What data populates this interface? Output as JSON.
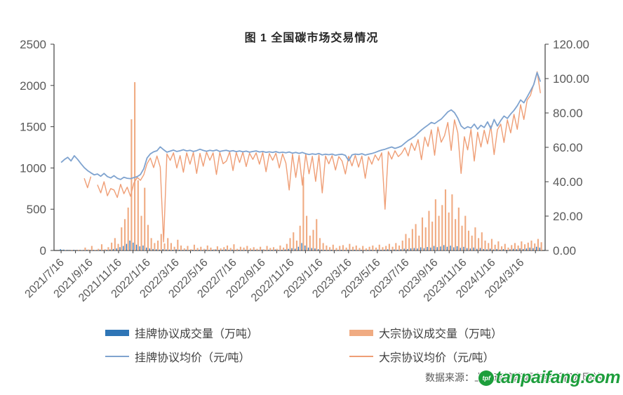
{
  "title": "图 1 全国碳市场交易情况",
  "source_text": "数据来源：上海环境能源交易所官方网站",
  "watermark": {
    "text": "tanpaifang.com",
    "logo_text": "tpf",
    "color": "#1d9e3c"
  },
  "colors": {
    "listed_volume_bar": "#2e75b6",
    "block_volume_bar": "#f0ab82",
    "listed_price_line": "#7fa3cf",
    "block_price_line": "#ef9e76",
    "axis_line": "#404040",
    "axis_text": "#595959"
  },
  "legend": [
    {
      "label": "挂牌协议成交量（万吨）",
      "type": "bar",
      "color": "#2e75b6"
    },
    {
      "label": "大宗协议成交量（万吨）",
      "type": "bar",
      "color": "#f0ab82"
    },
    {
      "label": "挂牌协议均价（元/吨）",
      "type": "line",
      "color": "#7fa3cf"
    },
    {
      "label": "大宗协议均价（元/吨）",
      "type": "line",
      "color": "#ef9e76"
    }
  ],
  "chart_data": {
    "type": "bar",
    "subtype": "dual-axis bar+line combo, weekly samples",
    "title": "图 1 全国碳市场交易情况",
    "x_start_date": "2021/7/16",
    "x_step_days": 7,
    "x_tick_labels": [
      "2021/7/16",
      "2021/9/16",
      "2021/11/16",
      "2022/1/16",
      "2022/3/16",
      "2022/5/16",
      "2022/7/16",
      "2022/9/16",
      "2022/11/16",
      "2023/1/16",
      "2023/3/16",
      "2023/5/16",
      "2023/7/16",
      "2023/9/16",
      "2023/11/16",
      "2024/1/16",
      "2024/3/16"
    ],
    "y_left": {
      "min": 0,
      "max": 2500,
      "values": [
        0,
        500,
        1000,
        1500,
        2000,
        2500
      ],
      "labels": [
        "0",
        "500",
        "1000",
        "1500",
        "2000",
        "2500"
      ],
      "unit": "万吨"
    },
    "y_right": {
      "min": 0,
      "max": 120,
      "values": [
        0,
        20,
        40,
        60,
        80,
        100,
        120
      ],
      "labels": [
        "0.00",
        "20.00",
        "40.00",
        "60.00",
        "80.00",
        "100.00",
        "120.00"
      ],
      "unit": "元/吨"
    },
    "grid": false,
    "legend_position": "bottom",
    "series": [
      {
        "name": "挂牌协议成交量（万吨）",
        "type": "bar",
        "axis": "left",
        "color": "#2e75b6",
        "values": [
          16,
          10,
          6,
          4,
          8,
          3,
          5,
          4,
          7,
          3,
          6,
          5,
          9,
          4,
          8,
          12,
          18,
          25,
          40,
          55,
          80,
          120,
          95,
          70,
          50,
          60,
          35,
          25,
          18,
          14,
          10,
          16,
          12,
          10,
          8,
          14,
          9,
          6,
          10,
          5,
          8,
          7,
          9,
          5,
          11,
          6,
          8,
          12,
          6,
          9,
          14,
          7,
          10,
          5,
          8,
          6,
          9,
          5,
          7,
          8,
          5,
          10,
          6,
          9,
          7,
          11,
          5,
          8,
          12,
          20,
          28,
          22,
          45,
          90,
          60,
          35,
          30,
          25,
          15,
          10,
          8,
          6,
          9,
          5,
          7,
          8,
          6,
          10,
          7,
          9,
          5,
          8,
          4,
          7,
          9,
          6,
          11,
          8,
          10,
          14,
          8,
          12,
          9,
          15,
          22,
          18,
          26,
          30,
          24,
          38,
          28,
          42,
          35,
          55,
          40,
          48,
          65,
          45,
          58,
          38,
          52,
          32,
          44,
          28,
          24,
          36,
          20,
          30,
          18,
          14,
          22,
          12,
          18,
          10,
          16,
          8,
          14,
          20,
          15,
          26,
          18,
          24,
          35,
          28,
          45,
          35
        ]
      },
      {
        "name": "大宗协议成交量（万吨）",
        "type": "bar",
        "axis": "left",
        "color": "#f0ab82",
        "values": [
          0,
          3,
          1,
          6,
          2,
          8,
          4,
          35,
          12,
          55,
          8,
          20,
          75,
          15,
          40,
          95,
          150,
          80,
          280,
          380,
          520,
          1590,
          2040,
          850,
          420,
          760,
          310,
          150,
          90,
          120,
          200,
          85,
          150,
          90,
          45,
          130,
          60,
          25,
          55,
          15,
          70,
          30,
          45,
          20,
          60,
          35,
          15,
          50,
          25,
          40,
          60,
          30,
          75,
          20,
          45,
          35,
          55,
          25,
          40,
          20,
          45,
          15,
          55,
          30,
          40,
          20,
          60,
          35,
          80,
          150,
          220,
          120,
          300,
          890,
          420,
          180,
          250,
          380,
          150,
          90,
          60,
          40,
          70,
          30,
          55,
          65,
          35,
          80,
          45,
          60,
          30,
          55,
          25,
          45,
          60,
          35,
          70,
          40,
          55,
          80,
          45,
          90,
          60,
          120,
          200,
          150,
          260,
          320,
          180,
          400,
          280,
          480,
          350,
          620,
          420,
          550,
          740,
          460,
          680,
          380,
          520,
          300,
          420,
          240,
          180,
          280,
          150,
          220,
          120,
          90,
          140,
          70,
          110,
          50,
          80,
          35,
          65,
          90,
          60,
          110,
          75,
          95,
          120,
          85,
          140,
          100
        ]
      },
      {
        "name": "挂牌协议均价（元/吨）",
        "type": "line",
        "axis": "right",
        "color": "#7fa3cf",
        "values": [
          51.2,
          52.9,
          54.2,
          52.1,
          55.1,
          53.0,
          50.5,
          48.2,
          46.5,
          45.2,
          44.0,
          44.5,
          43.2,
          44.8,
          43.0,
          42.2,
          43.5,
          42.0,
          41.3,
          42.6,
          42.0,
          41.8,
          42.4,
          43.0,
          44.2,
          47.5,
          53.8,
          56.2,
          57.4,
          58.0,
          60.3,
          58.6,
          57.2,
          57.8,
          58.4,
          57.6,
          58.0,
          58.6,
          57.9,
          58.3,
          57.6,
          58.1,
          58.9,
          58.2,
          57.7,
          58.3,
          57.9,
          58.5,
          57.6,
          58.0,
          58.3,
          57.7,
          58.1,
          57.5,
          57.9,
          57.4,
          57.8,
          57.2,
          57.6,
          57.9,
          57.3,
          57.6,
          57.1,
          57.4,
          57.0,
          57.5,
          56.9,
          57.2,
          56.8,
          57.3,
          56.6,
          57.0,
          56.5,
          57.0,
          56.3,
          55.8,
          56.2,
          55.9,
          56.4,
          55.6,
          56.0,
          55.7,
          56.1,
          55.4,
          55.8,
          56.0,
          55.3,
          52.2,
          55.6,
          56.1,
          55.8,
          56.3,
          55.5,
          56.0,
          56.4,
          57.0,
          57.8,
          58.4,
          58.9,
          59.6,
          60.2,
          59.4,
          60.0,
          60.8,
          62.5,
          64.0,
          65.2,
          66.5,
          68.3,
          70.1,
          71.6,
          73.0,
          74.5,
          73.8,
          75.2,
          76.4,
          78.5,
          80.6,
          81.8,
          80.2,
          77.0,
          72.5,
          70.8,
          72.0,
          71.2,
          73.5,
          70.6,
          72.8,
          71.5,
          74.8,
          70.9,
          76.2,
          72.4,
          75.6,
          78.2,
          76.8,
          79.4,
          81.5,
          84.2,
          87.6,
          85.9,
          89.3,
          92.8,
          96.5,
          103.5,
          98.2
        ]
      },
      {
        "name": "大宗协议均价（元/吨）",
        "type": "line",
        "axis": "right",
        "color": "#ef9e76",
        "values": [
          null,
          null,
          null,
          null,
          null,
          null,
          null,
          42.0,
          36.5,
          43.0,
          null,
          38.2,
          33.5,
          40.0,
          31.8,
          36.0,
          35.2,
          30.8,
          38.5,
          33.0,
          36.8,
          31.5,
          39.2,
          42.5,
          40.8,
          44.0,
          50.5,
          53.8,
          48.2,
          55.0,
          48.5,
          5.0,
          56.2,
          52.4,
          56.8,
          48.0,
          55.2,
          45.5,
          56.8,
          50.2,
          57.0,
          44.8,
          56.5,
          49.0,
          57.2,
          52.5,
          56.8,
          44.2,
          57.0,
          50.5,
          52.0,
          57.4,
          46.5,
          57.0,
          51.2,
          57.2,
          48.8,
          56.6,
          53.0,
          56.8,
          50.2,
          57.0,
          45.8,
          56.4,
          52.5,
          56.6,
          48.0,
          56.2,
          50.8,
          35.2,
          56.0,
          42.5,
          55.4,
          38.0,
          56.2,
          44.6,
          54.8,
          40.2,
          55.6,
          33.5,
          55.0,
          50.4,
          55.2,
          46.8,
          54.6,
          52.0,
          44.5,
          54.8,
          49.2,
          55.4,
          48.5,
          55.0,
          42.0,
          54.5,
          50.2,
          55.6,
          52.4,
          56.8,
          24.0,
          57.5,
          53.2,
          58.0,
          54.6,
          56.5,
          59.8,
          55.0,
          62.4,
          58.2,
          64.5,
          52.8,
          66.0,
          60.5,
          70.2,
          55.4,
          71.8,
          63.0,
          66.8,
          74.5,
          58.2,
          76.0,
          68.5,
          44.8,
          66.2,
          58.5,
          70.4,
          52.0,
          68.8,
          60.2,
          70.0,
          62.0,
          72.5,
          55.8,
          70.2,
          73.5,
          62.8,
          76.0,
          68.4,
          79.2,
          70.5,
          84.8,
          76.2,
          87.5,
          90.2,
          96.8,
          104.0,
          91.5
        ]
      }
    ]
  }
}
